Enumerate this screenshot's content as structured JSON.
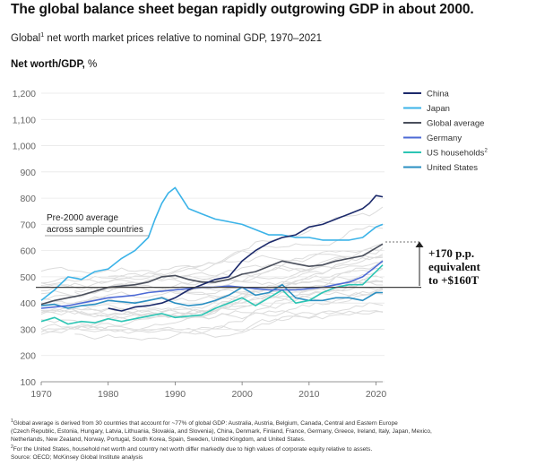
{
  "title": "The global balance sheet began rapidly outgrowing GDP in about 2000.",
  "subtitle": {
    "pre": "Global",
    "sup": "1",
    "post": " net worth market prices relative to nominal GDP, 1970–2021"
  },
  "y_axis_title": {
    "bold": "Net worth/GDP,",
    "rest": " %"
  },
  "annotations": {
    "pre2000_line1": "Pre-2000 average",
    "pre2000_line2": "across sample countries",
    "increase_line1": "+170 p.p.",
    "increase_line2": "equivalent",
    "increase_line3": "to +$160T"
  },
  "footnotes": {
    "f1_sup": "1",
    "f1_line1": "Global average is derived from 30 countries that account for ~77% of global GDP: Australia, Austria, Belgium, Canada, Central and Eastern Europe",
    "f1_line2": "(Czech Republic, Estonia, Hungary, Latvia, Lithuania, Slovakia, and Slovenia), China, Denmark, Finland, France, Germany, Greece, Ireland, Italy, Japan, Mexico,",
    "f1_line3": "Netherlands, New Zealand, Norway, Portugal, South Korea, Spain, Sweden, United Kingdom, and United States.",
    "f2_sup": "2",
    "f2_line": "For the United States, household net worth and country net worth differ markedly due to high values of corporate equity relative to assets.",
    "source": "Source: OECD; McKinsey Global Institute analysis"
  },
  "chart_data": {
    "type": "line",
    "title": "The global balance sheet began rapidly outgrowing GDP in about 2000.",
    "xlabel": "",
    "ylabel": "Net worth/GDP, %",
    "xlim": [
      1970,
      2021
    ],
    "ylim": [
      100,
      1200
    ],
    "x_ticks": [
      1970,
      1980,
      1990,
      2000,
      2010,
      2020
    ],
    "y_ticks": [
      100,
      200,
      300,
      400,
      500,
      600,
      700,
      800,
      900,
      1000,
      1100,
      1200
    ],
    "y_tick_labels": [
      "100",
      "200",
      "300",
      "400",
      "500",
      "600",
      "700",
      "800",
      "900",
      "1,000",
      "1,100",
      "1,200"
    ],
    "reference_line": {
      "value": 460,
      "label": "Pre-2000 average across sample countries"
    },
    "legend_position": "top-right",
    "series": [
      {
        "name": "China",
        "color": "#1c2a6b",
        "x": [
          1980,
          1982,
          1984,
          1986,
          1988,
          1990,
          1992,
          1994,
          1996,
          1998,
          2000,
          2002,
          2004,
          2006,
          2008,
          2010,
          2012,
          2014,
          2016,
          2018,
          2019,
          2020,
          2021
        ],
        "y": [
          380,
          370,
          385,
          390,
          400,
          420,
          450,
          470,
          490,
          500,
          560,
          600,
          630,
          650,
          660,
          690,
          700,
          720,
          740,
          760,
          780,
          810,
          805
        ]
      },
      {
        "name": "Japan",
        "color": "#3bb3e8",
        "x": [
          1970,
          1972,
          1974,
          1976,
          1978,
          1980,
          1982,
          1984,
          1986,
          1987,
          1988,
          1989,
          1990,
          1991,
          1992,
          1994,
          1996,
          1998,
          2000,
          2002,
          2004,
          2006,
          2008,
          2010,
          2012,
          2014,
          2016,
          2018,
          2020,
          2021
        ],
        "y": [
          410,
          450,
          500,
          490,
          520,
          530,
          570,
          600,
          650,
          720,
          780,
          820,
          840,
          800,
          760,
          740,
          720,
          710,
          700,
          680,
          660,
          660,
          650,
          650,
          640,
          640,
          640,
          650,
          690,
          700
        ]
      },
      {
        "name": "Global average",
        "color": "#4a4f5c",
        "x": [
          1970,
          1972,
          1974,
          1976,
          1978,
          1980,
          1982,
          1984,
          1986,
          1988,
          1990,
          1992,
          1994,
          1996,
          1998,
          2000,
          2002,
          2004,
          2006,
          2008,
          2010,
          2012,
          2014,
          2016,
          2018,
          2020,
          2021
        ],
        "y": [
          395,
          410,
          420,
          430,
          445,
          460,
          465,
          470,
          480,
          500,
          505,
          490,
          480,
          480,
          490,
          510,
          520,
          540,
          560,
          550,
          540,
          545,
          560,
          570,
          580,
          610,
          625
        ]
      },
      {
        "name": "Germany",
        "color": "#4d6ad6",
        "x": [
          1970,
          1972,
          1974,
          1976,
          1978,
          1980,
          1982,
          1984,
          1986,
          1988,
          1990,
          1992,
          1994,
          1996,
          1998,
          2000,
          2002,
          2004,
          2006,
          2008,
          2010,
          2012,
          2014,
          2016,
          2018,
          2020,
          2021
        ],
        "y": [
          380,
          385,
          390,
          400,
          410,
          420,
          425,
          430,
          440,
          445,
          450,
          455,
          460,
          460,
          465,
          460,
          455,
          450,
          450,
          450,
          455,
          460,
          470,
          480,
          500,
          540,
          560
        ]
      },
      {
        "name": "US households",
        "color": "#2cc5b4",
        "x": [
          1970,
          1972,
          1974,
          1976,
          1978,
          1980,
          1982,
          1984,
          1986,
          1988,
          1990,
          1992,
          1994,
          1996,
          1998,
          2000,
          2002,
          2004,
          2006,
          2008,
          2010,
          2012,
          2014,
          2016,
          2018,
          2020,
          2021
        ],
        "y": [
          330,
          345,
          320,
          330,
          325,
          340,
          330,
          340,
          350,
          360,
          345,
          350,
          355,
          380,
          400,
          420,
          390,
          420,
          450,
          400,
          410,
          440,
          460,
          470,
          470,
          520,
          545
        ]
      },
      {
        "name": "United States",
        "color": "#2a8fc2",
        "x": [
          1970,
          1972,
          1974,
          1976,
          1978,
          1980,
          1982,
          1984,
          1986,
          1988,
          1990,
          1992,
          1994,
          1996,
          1998,
          2000,
          2002,
          2004,
          2006,
          2008,
          2010,
          2012,
          2014,
          2016,
          2018,
          2020,
          2021
        ],
        "y": [
          390,
          395,
          380,
          390,
          395,
          410,
          405,
          400,
          410,
          420,
          400,
          390,
          395,
          410,
          430,
          460,
          430,
          440,
          470,
          420,
          410,
          410,
          420,
          420,
          410,
          440,
          440
        ]
      }
    ],
    "background_series_count": 24
  }
}
